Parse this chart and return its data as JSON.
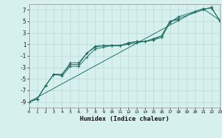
{
  "xlabel": "Humidex (Indice chaleur)",
  "ylabel": "",
  "x_values": [
    0,
    1,
    2,
    3,
    4,
    5,
    6,
    7,
    8,
    9,
    10,
    11,
    12,
    13,
    14,
    15,
    16,
    17,
    18,
    19,
    20,
    21,
    22,
    23
  ],
  "series1": [
    -9.0,
    -8.5,
    -6.2,
    -4.2,
    -4.2,
    -2.2,
    -2.2,
    -0.5,
    0.7,
    0.8,
    0.8,
    0.8,
    1.3,
    1.5,
    1.5,
    2.0,
    2.5,
    5.0,
    5.3,
    null,
    null,
    null,
    null,
    null
  ],
  "series2": [
    -9.0,
    -8.5,
    -6.2,
    -4.2,
    -4.2,
    -2.5,
    -2.5,
    -0.5,
    0.5,
    0.8,
    0.8,
    0.8,
    1.2,
    1.5,
    1.5,
    1.8,
    2.2,
    4.8,
    5.8,
    null,
    null,
    7.2,
    7.3,
    5.2
  ],
  "series3": [
    -9.0,
    -8.5,
    -6.2,
    -4.2,
    -4.5,
    -2.8,
    -2.8,
    -1.2,
    0.2,
    0.5,
    0.8,
    0.8,
    1.0,
    1.3,
    1.5,
    1.8,
    2.5,
    5.0,
    5.5,
    null,
    null,
    7.0,
    7.5,
    5.0
  ],
  "series4": [
    -9.0,
    null,
    null,
    null,
    null,
    null,
    null,
    null,
    null,
    null,
    null,
    null,
    null,
    null,
    null,
    null,
    null,
    null,
    null,
    null,
    6.7,
    7.2,
    null,
    5.2
  ],
  "line_color": "#1a6b5e",
  "bg_color": "#d6f0ee",
  "grid_color": "#b8d8d4",
  "xlim": [
    0,
    23
  ],
  "ylim": [
    -10,
    8
  ],
  "yticks": [
    -9,
    -7,
    -5,
    -3,
    -1,
    1,
    3,
    5,
    7
  ],
  "xticks": [
    0,
    1,
    2,
    3,
    4,
    5,
    6,
    7,
    8,
    9,
    10,
    11,
    12,
    13,
    14,
    15,
    16,
    17,
    18,
    19,
    20,
    21,
    22,
    23
  ]
}
